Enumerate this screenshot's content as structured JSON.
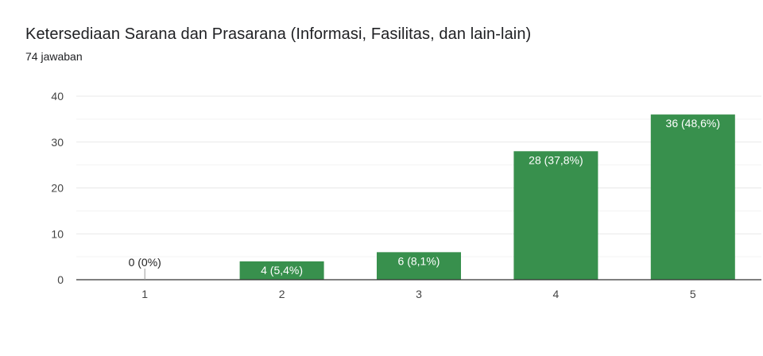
{
  "form_summary": {
    "question_title": "Ketersediaan Sarana dan Prasarana (Informasi, Fasilitas, dan lain-lain)",
    "response_count": "74 jawaban"
  },
  "colors": {
    "bar": "#38904d",
    "gridline": "#e8e8e8",
    "axis": "#333333",
    "label_inside": "#ffffff",
    "label_outside": "#222222"
  },
  "chart_data": {
    "type": "bar",
    "categories": [
      "1",
      "2",
      "3",
      "4",
      "5"
    ],
    "values": [
      0,
      4,
      6,
      28,
      36
    ],
    "data_labels": [
      "0 (0%)",
      "4 (5,4%)",
      "6 (8,1%)",
      "28 (37,8%)",
      "36 (48,6%)"
    ],
    "y_ticks": [
      "0",
      "10",
      "20",
      "30",
      "40"
    ],
    "ylim": [
      0,
      40
    ],
    "grid": true,
    "legend": "none"
  }
}
